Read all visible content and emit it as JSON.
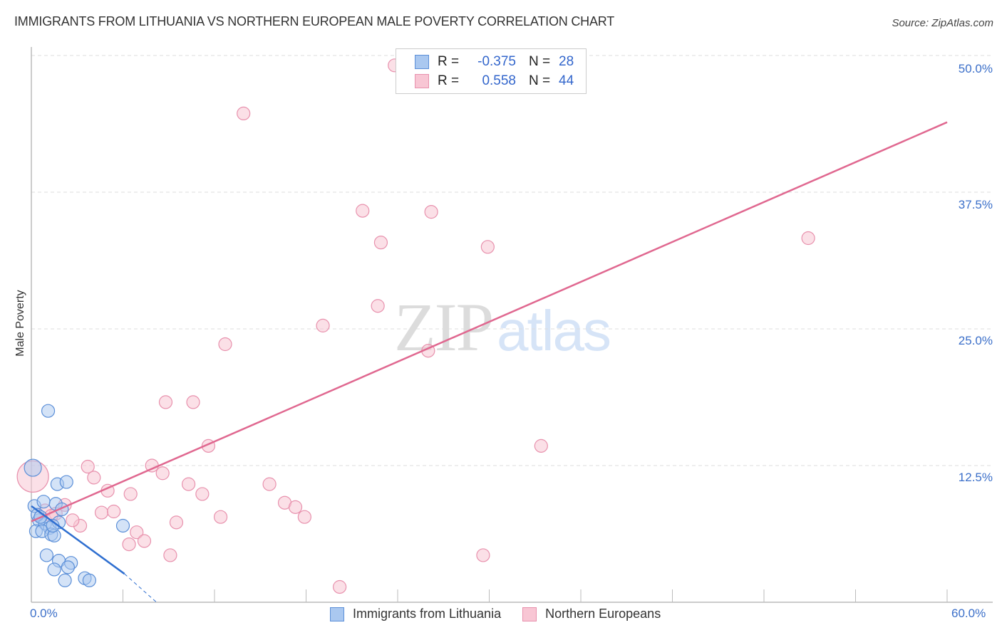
{
  "header": {
    "title": "IMMIGRANTS FROM LITHUANIA VS NORTHERN EUROPEAN MALE POVERTY CORRELATION CHART",
    "source": "Source: ZipAtlas.com"
  },
  "axes": {
    "ylabel": "Male Poverty",
    "yticks": [
      "50.0%",
      "37.5%",
      "25.0%",
      "12.5%"
    ],
    "xticks": [
      "0.0%",
      "60.0%"
    ]
  },
  "legend": {
    "series1": {
      "r_label": "R =",
      "r_value": "-0.375",
      "n_label": "N =",
      "n_value": "28"
    },
    "series2": {
      "r_label": "R =",
      "r_value": "0.558",
      "n_label": "N =",
      "n_value": "44"
    }
  },
  "bottom_legend": {
    "series1": "Immigrants from Lithuania",
    "series2": "Northern Europeans"
  },
  "watermark": {
    "zip": "ZIP",
    "atlas": "atlas"
  },
  "colors": {
    "blue_fill": "#aac8f0",
    "blue_stroke": "#5b8fd8",
    "blue_line": "#2f6fd0",
    "pink_fill": "#f8c6d4",
    "pink_stroke": "#e891ad",
    "pink_line": "#e06890",
    "tick_text": "#3b6fc9"
  },
  "chart_data": {
    "type": "scatter",
    "title": "IMMIGRANTS FROM LITHUANIA VS NORTHERN EUROPEAN MALE POVERTY CORRELATION CHART",
    "xlabel": "Immigrants from Lithuania / Northern Europeans",
    "ylabel": "Male Poverty",
    "xlim": [
      0,
      60
    ],
    "ylim": [
      0,
      50
    ],
    "x_ticks": [
      "0.0%",
      "60.0%"
    ],
    "y_ticks": [
      "12.5%",
      "25.0%",
      "37.5%",
      "50.0%"
    ],
    "grid": "horizontal dashed",
    "legend_position": "top-center",
    "series": [
      {
        "name": "Immigrants from Lithuania",
        "R": -0.375,
        "N": 28,
        "trend": {
          "x0": 0,
          "y0": 8.8,
          "x1": 6.1,
          "y1": 2.6,
          "dashed_to": {
            "x": 8.2,
            "y": 0.0
          }
        },
        "points": [
          [
            0.1,
            12.3
          ],
          [
            1.1,
            17.5
          ],
          [
            0.2,
            8.8
          ],
          [
            0.8,
            9.2
          ],
          [
            1.6,
            9.0
          ],
          [
            1.7,
            10.8
          ],
          [
            2.3,
            11.0
          ],
          [
            0.5,
            7.5
          ],
          [
            0.9,
            7.2
          ],
          [
            1.2,
            6.8
          ],
          [
            1.8,
            7.3
          ],
          [
            2.0,
            8.5
          ],
          [
            0.3,
            6.5
          ],
          [
            0.7,
            6.5
          ],
          [
            1.3,
            6.2
          ],
          [
            1.5,
            6.1
          ],
          [
            6.0,
            7.0
          ],
          [
            1.0,
            4.3
          ],
          [
            1.8,
            3.8
          ],
          [
            2.6,
            3.6
          ],
          [
            1.5,
            3.0
          ],
          [
            2.4,
            3.2
          ],
          [
            3.5,
            2.2
          ],
          [
            3.8,
            2.0
          ],
          [
            2.2,
            2.0
          ],
          [
            0.4,
            8.0
          ],
          [
            0.6,
            7.8
          ],
          [
            1.4,
            7.0
          ]
        ]
      },
      {
        "name": "Northern Europeans",
        "R": 0.558,
        "N": 44,
        "trend": {
          "x0": 0,
          "y0": 7.4,
          "x1": 60,
          "y1": 43.9
        },
        "points": [
          [
            23.8,
            49.1
          ],
          [
            13.9,
            44.7
          ],
          [
            21.7,
            35.8
          ],
          [
            26.2,
            35.7
          ],
          [
            22.9,
            32.9
          ],
          [
            29.9,
            32.5
          ],
          [
            50.9,
            33.3
          ],
          [
            22.7,
            27.1
          ],
          [
            19.1,
            25.3
          ],
          [
            12.7,
            23.6
          ],
          [
            26.0,
            23.0
          ],
          [
            8.8,
            18.3
          ],
          [
            10.6,
            18.3
          ],
          [
            11.6,
            14.3
          ],
          [
            33.4,
            14.3
          ],
          [
            0.1,
            11.5
          ],
          [
            3.7,
            12.4
          ],
          [
            7.9,
            12.5
          ],
          [
            4.1,
            11.4
          ],
          [
            8.6,
            11.8
          ],
          [
            10.3,
            10.8
          ],
          [
            15.6,
            10.8
          ],
          [
            11.2,
            9.9
          ],
          [
            5.0,
            10.2
          ],
          [
            6.5,
            9.9
          ],
          [
            16.6,
            9.1
          ],
          [
            17.3,
            8.7
          ],
          [
            2.2,
            8.9
          ],
          [
            0.9,
            8.4
          ],
          [
            1.6,
            8.1
          ],
          [
            4.6,
            8.2
          ],
          [
            5.4,
            8.3
          ],
          [
            12.4,
            7.8
          ],
          [
            17.9,
            7.8
          ],
          [
            3.2,
            7.0
          ],
          [
            2.7,
            7.5
          ],
          [
            9.5,
            7.3
          ],
          [
            6.9,
            6.4
          ],
          [
            7.4,
            5.6
          ],
          [
            6.4,
            5.3
          ],
          [
            9.1,
            4.3
          ],
          [
            29.6,
            4.3
          ],
          [
            20.2,
            1.4
          ],
          [
            1.3,
            7.9
          ]
        ]
      }
    ]
  }
}
